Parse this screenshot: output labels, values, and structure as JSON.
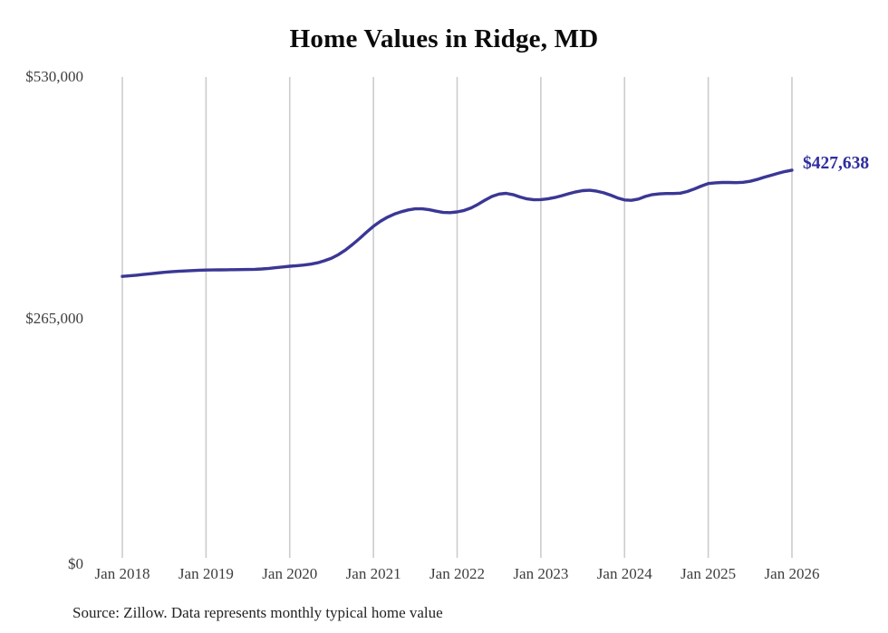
{
  "colors": {
    "line": "#3a3795",
    "end_label": "#2f2d9c",
    "gridline": "#cccccc",
    "axis_text": "#3d3d3d",
    "title_text": "#0b0b0b",
    "background": "#ffffff"
  },
  "annotations": {
    "source": "Source: Zillow. Data represents monthly typical home value"
  },
  "chart_data": {
    "type": "line",
    "title": "Home Values in Ridge, MD",
    "xlabel": "",
    "ylabel": "",
    "x_unit": "month",
    "x_start": "Jan 2018",
    "x_end": "Jan 2026",
    "x_tick_labels": [
      "Jan 2018",
      "Jan 2019",
      "Jan 2020",
      "Jan 2021",
      "Jan 2022",
      "Jan 2023",
      "Jan 2024",
      "Jan 2025",
      "Jan 2026"
    ],
    "y_tick_labels_top_down": [
      "$530,000",
      "$265,000",
      "$0"
    ],
    "ylim": [
      0,
      530000
    ],
    "grid": "vertical-only",
    "legend": "none",
    "end_label": "$427,638",
    "end_value": 427638,
    "series": [
      {
        "name": "Typical home value",
        "values": [
          311000,
          311600,
          312300,
          313100,
          313900,
          314700,
          315500,
          316100,
          316600,
          317000,
          317400,
          317800,
          318000,
          318100,
          318200,
          318300,
          318400,
          318500,
          318600,
          318800,
          319200,
          319800,
          320600,
          321400,
          322200,
          322800,
          323500,
          324500,
          326000,
          328200,
          331000,
          335000,
          340000,
          346000,
          352500,
          359500,
          366000,
          371500,
          376000,
          379500,
          382000,
          384000,
          385200,
          385200,
          384200,
          382600,
          381200,
          381000,
          381800,
          383400,
          386200,
          390200,
          394800,
          398800,
          401400,
          402200,
          400800,
          398200,
          396200,
          395200,
          395400,
          396200,
          397600,
          399600,
          401800,
          403800,
          405200,
          405600,
          404600,
          402800,
          400200,
          397200,
          395000,
          394600,
          396000,
          398800,
          400800,
          401600,
          402000,
          402000,
          402400,
          404200,
          407000,
          410200,
          413000,
          413800,
          414200,
          414200,
          414000,
          414400,
          415400,
          417400,
          419800,
          422000,
          424200,
          426200,
          427638
        ]
      }
    ]
  }
}
